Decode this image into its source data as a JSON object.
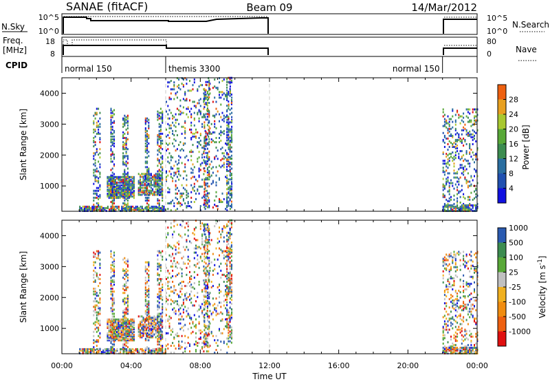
{
  "header": {
    "station": "SANAE (fitACF)",
    "beam": "Beam 09",
    "date": "14/Mar/2012"
  },
  "top_panels": {
    "nsky_label": "N.Sky",
    "nsky_ticks": [
      "10^5",
      "10^0"
    ],
    "nsearch_label": "N.Search",
    "nsearch_ticks": [
      "10^5",
      "10^0"
    ],
    "freq_label": "Freq.",
    "freq_unit": "[MHz]",
    "freq_ticks": [
      "18",
      "8"
    ],
    "nave_label": "Nave",
    "nave_ticks": [
      "80",
      "0"
    ],
    "cpid_label": "CPID",
    "cpid_segments": [
      {
        "name": "normal 150",
        "start": 0,
        "end": 6
      },
      {
        "name": "themis 3300",
        "start": 6,
        "end": 12
      },
      {
        "name": "normal 150",
        "start": 22,
        "end": 24
      }
    ]
  },
  "colors": {
    "power": [
      "#1010e0",
      "#2050b0",
      "#2a6ea0",
      "#3c8c50",
      "#58a838",
      "#a8c830",
      "#e8a020",
      "#ee6010",
      "#e01010"
    ],
    "velocity": [
      "#e01010",
      "#ee6010",
      "#f08c10",
      "#f0b020",
      "#c0c0c0",
      "#58a838",
      "#3c8c50",
      "#2a5ab0",
      "#1010e0"
    ]
  },
  "chart_data": [
    {
      "type": "heatmap",
      "panel": "power",
      "ylabel": "Slant Range [km]",
      "xlabel": "Time UT",
      "x_ticks": [
        "00:00",
        "04:00",
        "08:00",
        "12:00",
        "16:00",
        "20:00",
        "00:00"
      ],
      "xlim": [
        0,
        24
      ],
      "ylim": [
        180,
        4500
      ],
      "y_ticks": [
        1000,
        2000,
        3000,
        4000
      ],
      "colorbar_label": "Power [dB]",
      "colorbar_ticks": [
        "4",
        "8",
        "12",
        "16",
        "20",
        "24",
        "28"
      ],
      "colorbar_range": [
        0,
        30
      ],
      "scatter_bands": [
        {
          "t0": 1.8,
          "t1": 2.2,
          "r0": 200,
          "r1": 3500,
          "density": 0.35
        },
        {
          "t0": 2.6,
          "t1": 4.2,
          "r0": 600,
          "r1": 1300,
          "density": 0.9
        },
        {
          "t0": 2.8,
          "t1": 3.0,
          "r0": 200,
          "r1": 3500,
          "density": 0.45
        },
        {
          "t0": 3.5,
          "t1": 3.8,
          "r0": 200,
          "r1": 3300,
          "density": 0.45
        },
        {
          "t0": 4.4,
          "t1": 5.8,
          "r0": 700,
          "r1": 1400,
          "density": 0.7
        },
        {
          "t0": 4.8,
          "t1": 5.0,
          "r0": 200,
          "r1": 3200,
          "density": 0.45
        },
        {
          "t0": 5.5,
          "t1": 5.8,
          "r0": 200,
          "r1": 3500,
          "density": 0.4
        },
        {
          "t0": 6.0,
          "t1": 9.8,
          "r0": 200,
          "r1": 4500,
          "density": 0.14
        },
        {
          "t0": 8.2,
          "t1": 8.5,
          "r0": 300,
          "r1": 4400,
          "density": 0.45
        },
        {
          "t0": 9.5,
          "t1": 9.8,
          "r0": 300,
          "r1": 4500,
          "density": 0.4
        },
        {
          "t0": 1.0,
          "t1": 6.0,
          "r0": 180,
          "r1": 350,
          "density": 0.7
        },
        {
          "t0": 22.0,
          "t1": 24.0,
          "r0": 180,
          "r1": 3500,
          "density": 0.22
        },
        {
          "t0": 22.0,
          "t1": 24.0,
          "r0": 180,
          "r1": 400,
          "density": 0.75
        }
      ]
    },
    {
      "type": "heatmap",
      "panel": "velocity",
      "ylabel": "Slant Range [km]",
      "xlabel": "Time UT",
      "x_ticks": [
        "00:00",
        "04:00",
        "08:00",
        "12:00",
        "16:00",
        "20:00",
        "00:00"
      ],
      "xlim": [
        0,
        24
      ],
      "ylim": [
        180,
        4500
      ],
      "y_ticks": [
        1000,
        2000,
        3000,
        4000
      ],
      "colorbar_label": "Velocity [m s^-1]",
      "colorbar_ticks": [
        "-1000",
        "-500",
        "-100",
        "-25",
        "25",
        "100",
        "500",
        "1000"
      ],
      "colorbar_range": [
        -1000,
        1000
      ],
      "scatter_bands": [
        {
          "t0": 1.8,
          "t1": 2.2,
          "r0": 200,
          "r1": 3500,
          "density": 0.35
        },
        {
          "t0": 2.6,
          "t1": 4.2,
          "r0": 600,
          "r1": 1300,
          "density": 0.9
        },
        {
          "t0": 2.8,
          "t1": 3.0,
          "r0": 200,
          "r1": 3500,
          "density": 0.45
        },
        {
          "t0": 3.5,
          "t1": 3.8,
          "r0": 200,
          "r1": 3300,
          "density": 0.45
        },
        {
          "t0": 4.4,
          "t1": 5.8,
          "r0": 700,
          "r1": 1400,
          "density": 0.7
        },
        {
          "t0": 4.8,
          "t1": 5.0,
          "r0": 200,
          "r1": 3200,
          "density": 0.45
        },
        {
          "t0": 5.5,
          "t1": 5.8,
          "r0": 200,
          "r1": 3500,
          "density": 0.4
        },
        {
          "t0": 6.0,
          "t1": 9.8,
          "r0": 200,
          "r1": 4500,
          "density": 0.14
        },
        {
          "t0": 8.2,
          "t1": 8.5,
          "r0": 300,
          "r1": 4400,
          "density": 0.45
        },
        {
          "t0": 9.5,
          "t1": 9.8,
          "r0": 300,
          "r1": 4500,
          "density": 0.4
        },
        {
          "t0": 1.0,
          "t1": 6.0,
          "r0": 180,
          "r1": 350,
          "density": 0.7
        },
        {
          "t0": 22.0,
          "t1": 24.0,
          "r0": 180,
          "r1": 3500,
          "density": 0.22
        },
        {
          "t0": 22.0,
          "t1": 24.0,
          "r0": 180,
          "r1": 400,
          "density": 0.75
        }
      ]
    }
  ]
}
